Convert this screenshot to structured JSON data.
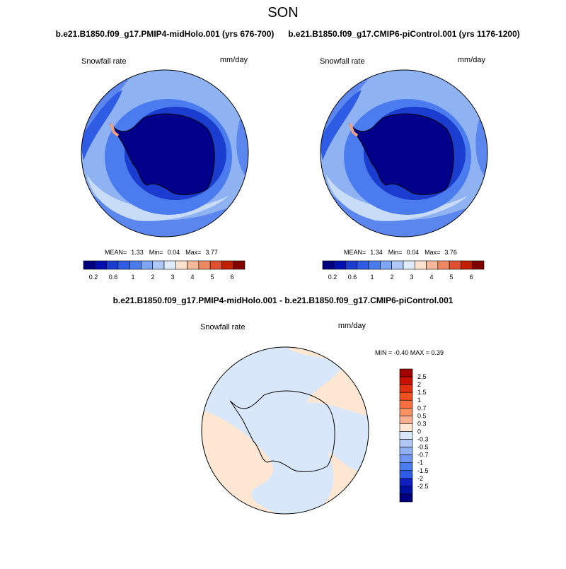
{
  "header": {
    "title": "SON"
  },
  "panels": [
    {
      "title": "b.e21.B1850.f09_g17.PMIP4-midHolo.001 (yrs 676-700)",
      "label_left": "Snowfall rate",
      "label_right": "mm/day",
      "stats": {
        "mean_label": "MEAN=",
        "mean": "1.33",
        "min_label": "Min=",
        "min": "0.04",
        "max_label": "Max=",
        "max": "3.77"
      }
    },
    {
      "title": "b.e21.B1850.f09_g17.CMIP6-piControl.001 (yrs 1176-1200)",
      "label_left": "Snowfall rate",
      "label_right": "mm/day",
      "stats": {
        "mean_label": "MEAN=",
        "mean": "1.34",
        "min_label": "Min=",
        "min": "0.04",
        "max_label": "Max=",
        "max": "3.76"
      }
    }
  ],
  "colorbar": {
    "labels": [
      0.2,
      0.6,
      1,
      2,
      3,
      4,
      5,
      6
    ]
  },
  "difference": {
    "title": "b.e21.B1850.f09_g17.PMIP4-midHolo.001 - b.e21.B1850.f09_g17.CMIP6-piControl.001",
    "label_left": "Snowfall rate",
    "label_right": "mm/day",
    "stats": "MIN = -0.40 MAX =  0.39",
    "colorbar": {
      "labels": [
        2.5,
        2,
        1.5,
        1,
        0.7,
        0.5,
        0.3,
        0,
        -0.3,
        -0.5,
        -0.7,
        -1,
        -1.5,
        -2,
        -2.5
      ]
    }
  }
}
